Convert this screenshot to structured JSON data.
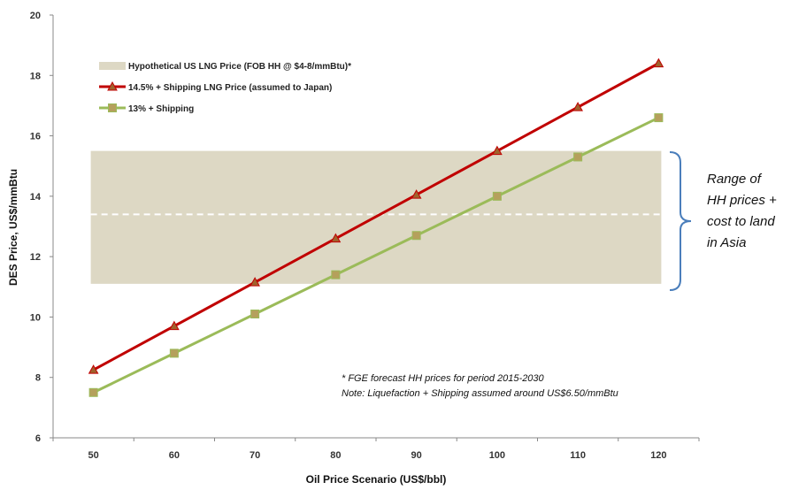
{
  "chart_data": {
    "type": "line",
    "title": "",
    "xlabel": "Oil Price Scenario (US$/bbl)",
    "ylabel": "DES Price, US$/mmBtu",
    "x": [
      50,
      60,
      70,
      80,
      90,
      100,
      110,
      120
    ],
    "xlim": [
      45,
      125
    ],
    "ylim": [
      6,
      20
    ],
    "yticks": [
      6,
      8,
      10,
      12,
      14,
      16,
      18,
      20
    ],
    "grid": false,
    "legend_position": "top-left",
    "band": {
      "name": "Hypothetical US LNG Price (FOB HH @ $4-8/mmBtu)*",
      "x_range": [
        50,
        120
      ],
      "y_range": [
        11.1,
        15.5
      ],
      "midline": 13.4,
      "color": "#ddd8c4",
      "midline_color": "#ffffff"
    },
    "series": [
      {
        "name": "14.5% + Shipping LNG Price (assumed to Japan)",
        "values": [
          8.25,
          9.7,
          11.15,
          12.6,
          14.05,
          15.5,
          16.95,
          18.4
        ],
        "color": "#c00000",
        "marker": "triangle",
        "marker_fill": "#a0622d"
      },
      {
        "name": "13% + Shipping",
        "values": [
          7.5,
          8.8,
          10.1,
          11.4,
          12.7,
          14.0,
          15.3,
          16.6
        ],
        "color": "#9bbb59",
        "marker": "square",
        "marker_fill": "#b5a05c"
      }
    ],
    "annotations": {
      "note_lines": [
        "* FGE forecast HH prices for period 2015-2030",
        "Note: Liquefaction + Shipping assumed around US$6.50/mmBtu"
      ],
      "bracket_label_lines": [
        "Range of",
        "HH prices +",
        "cost to land",
        "in Asia"
      ],
      "bracket_color": "#4a7ebb"
    }
  }
}
